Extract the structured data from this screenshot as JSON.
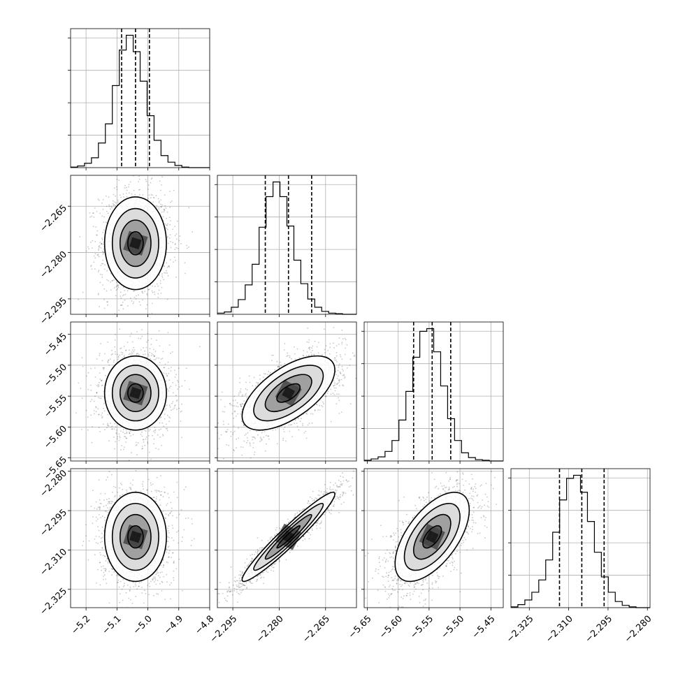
{
  "chart_data": {
    "type": "scatter",
    "title": "",
    "parameters": [
      {
        "mean": -5.04,
        "sigma": 0.05,
        "range": [
          -5.25,
          -4.8
        ],
        "ticks": [
          -5.2,
          -5.1,
          -5.0,
          -4.9,
          -4.8
        ],
        "tick_labels": [
          "−5.2",
          "−5.1",
          "−5.0",
          "−4.9",
          "−4.8"
        ],
        "quantiles": [
          -5.085,
          -5.04,
          -4.995
        ],
        "hist_counts": [
          1,
          3,
          8,
          18,
          45,
          80,
          150,
          215,
          242,
          212,
          158,
          95,
          50,
          22,
          10,
          4,
          1,
          0,
          0,
          0
        ]
      },
      {
        "mean": -2.277,
        "sigma": 0.0075,
        "range": [
          -2.3,
          -2.255
        ],
        "ticks": [
          -2.295,
          -2.28,
          -2.265
        ],
        "tick_labels": [
          "−2.295",
          "−2.280",
          "−2.265"
        ],
        "quantiles": [
          -2.2845,
          -2.277,
          -2.2695
        ],
        "hist_counts": [
          2,
          4,
          12,
          25,
          50,
          85,
          148,
          200,
          225,
          200,
          150,
          92,
          52,
          26,
          12,
          5,
          2,
          1,
          0,
          0
        ]
      },
      {
        "mean": -5.545,
        "sigma": 0.03,
        "range": [
          -5.655,
          -5.43
        ],
        "ticks": [
          -5.65,
          -5.6,
          -5.55,
          -5.5,
          -5.45
        ],
        "tick_labels": [
          "−5.65",
          "−5.60",
          "−5.55",
          "−5.50",
          "−5.45"
        ],
        "y_tick_labels": [
          "−5.65",
          "−5.60",
          "−5.55",
          "−5.50",
          "−5.45"
        ],
        "quantiles": [
          -5.575,
          -5.545,
          -5.515
        ],
        "hist_counts": [
          1,
          3,
          6,
          14,
          30,
          60,
          102,
          152,
          190,
          194,
          160,
          110,
          62,
          30,
          12,
          5,
          2,
          1,
          0,
          0
        ]
      },
      {
        "mean": -2.305,
        "sigma": 0.0085,
        "range": [
          -2.332,
          -2.279
        ],
        "ticks": [
          -2.325,
          -2.31,
          -2.295,
          -2.28
        ],
        "tick_labels": [
          "−2.325",
          "−2.310",
          "−2.295",
          "−2.280"
        ],
        "quantiles": [
          -2.3135,
          -2.305,
          -2.2965
        ],
        "hist_counts": [
          1,
          4,
          10,
          20,
          36,
          62,
          98,
          140,
          168,
          172,
          150,
          112,
          72,
          40,
          20,
          8,
          3,
          1,
          0,
          0
        ]
      }
    ],
    "correlations": {
      "1-0": 0.0,
      "2-0": 0.0,
      "2-1": 0.62,
      "3-0": 0.0,
      "3-1": 0.96,
      "3-2": 0.6
    },
    "grid": true
  }
}
